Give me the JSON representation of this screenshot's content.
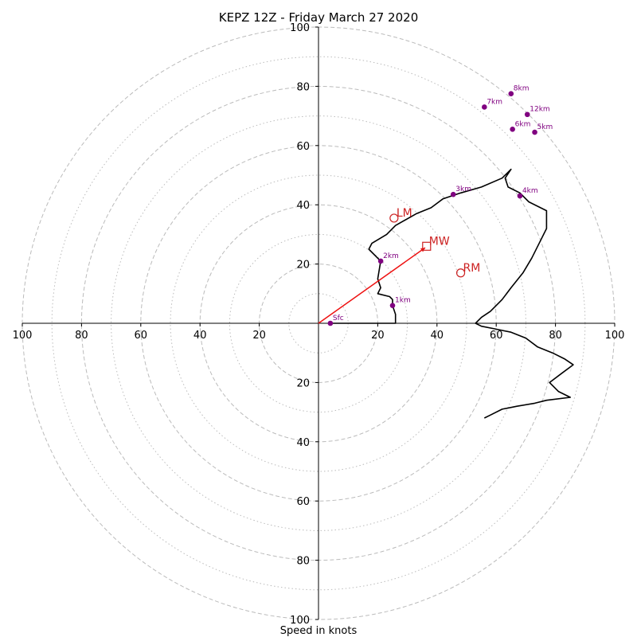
{
  "chart_data": {
    "type": "line",
    "title": "KEPZ 12Z - Friday March 27 2020",
    "xlabel": "Speed in knots",
    "ylabel": "",
    "units": "knots",
    "xlim": [
      -100,
      100
    ],
    "ylim": [
      -100,
      100
    ],
    "major_rings": [
      20,
      40,
      60,
      80,
      100
    ],
    "minor_rings": [
      10,
      30,
      50,
      70,
      90
    ],
    "grid": true,
    "x_ticks": [
      {
        "value": -100,
        "label": "100"
      },
      {
        "value": -80,
        "label": "80"
      },
      {
        "value": -60,
        "label": "60"
      },
      {
        "value": -40,
        "label": "40"
      },
      {
        "value": -20,
        "label": "20"
      },
      {
        "value": 20,
        "label": "20"
      },
      {
        "value": 40,
        "label": "40"
      },
      {
        "value": 60,
        "label": "60"
      },
      {
        "value": 80,
        "label": "80"
      },
      {
        "value": 100,
        "label": "100"
      }
    ],
    "y_ticks": [
      {
        "value": 100,
        "label": "100"
      },
      {
        "value": 80,
        "label": "80"
      },
      {
        "value": 60,
        "label": "60"
      },
      {
        "value": 40,
        "label": "40"
      },
      {
        "value": 20,
        "label": "20"
      },
      {
        "value": -20,
        "label": "20"
      },
      {
        "value": -40,
        "label": "40"
      },
      {
        "value": -60,
        "label": "60"
      },
      {
        "value": -80,
        "label": "80"
      },
      {
        "value": -100,
        "label": "100"
      }
    ],
    "hodograph": {
      "color": "#000000",
      "u": [
        4,
        10,
        15,
        20,
        26,
        26,
        25,
        25,
        24,
        20,
        21,
        20,
        21,
        17,
        18,
        23,
        26,
        33,
        38,
        42,
        48,
        55,
        62,
        64,
        65,
        63,
        64,
        68,
        71,
        77,
        77,
        75,
        72,
        69,
        65,
        62,
        58,
        55,
        53,
        55,
        60,
        65,
        70,
        74,
        79,
        83,
        86,
        82,
        78,
        81,
        85,
        77,
        73,
        67,
        62,
        58,
        56
      ],
      "v": [
        0,
        0,
        0,
        0,
        0,
        3,
        6,
        8,
        9,
        10,
        12,
        15,
        21,
        25,
        27,
        30,
        33,
        37,
        39,
        42,
        44,
        46,
        49,
        51,
        52,
        49,
        46,
        44,
        41,
        38,
        32,
        28,
        22,
        17,
        12,
        8,
        4,
        2,
        0,
        -1,
        -2,
        -3,
        -5,
        -8,
        -10,
        -12,
        -14,
        -17,
        -20,
        -23,
        -25,
        -26,
        -27,
        -28,
        -29,
        -31,
        -32
      ]
    },
    "height_markers": [
      {
        "label": "Sfc",
        "u": 4,
        "v": 0
      },
      {
        "label": "1km",
        "u": 25,
        "v": 6
      },
      {
        "label": "2km",
        "u": 21,
        "v": 21
      },
      {
        "label": "3km",
        "u": 45.5,
        "v": 43.5
      },
      {
        "label": "4km",
        "u": 68,
        "v": 43
      },
      {
        "label": "5km",
        "u": 73,
        "v": 64.5
      },
      {
        "label": "6km",
        "u": 65.5,
        "v": 65.5
      },
      {
        "label": "7km",
        "u": 56,
        "v": 73
      },
      {
        "label": "8km",
        "u": 65,
        "v": 77.5
      },
      {
        "label": "12km",
        "u": 70.5,
        "v": 70.5
      }
    ],
    "marker_color": "#800080",
    "storm_motion": {
      "color": "#cc2222",
      "vector": {
        "u": 36,
        "v": 25.5
      },
      "points": [
        {
          "label": "LM",
          "u": 25.5,
          "v": 35.5,
          "shape": "circle"
        },
        {
          "label": "MW",
          "u": 36.5,
          "v": 26,
          "shape": "square"
        },
        {
          "label": "RM",
          "u": 48,
          "v": 17,
          "shape": "circle"
        }
      ]
    }
  }
}
